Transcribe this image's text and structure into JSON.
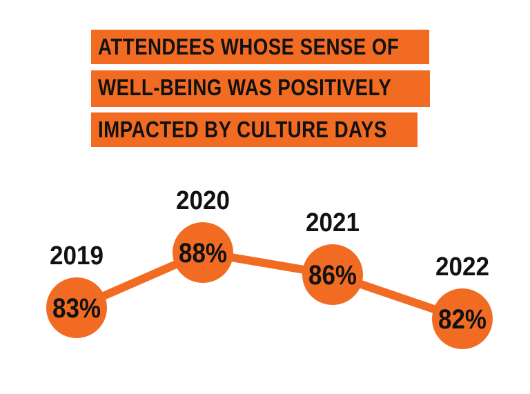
{
  "title_lines": [
    "ATTENDEES WHOSE SENSE OF",
    "WELL-BEING WAS POSITIVELY",
    "IMPACTED BY CULTURE DAYS"
  ],
  "colors": {
    "accent": "#f26b22",
    "text": "#111111",
    "background": "#ffffff"
  },
  "chart_data": {
    "type": "line",
    "title": "ATTENDEES WHOSE SENSE OF WELL-BEING WAS POSITIVELY IMPACTED BY CULTURE DAYS",
    "categories": [
      "2019",
      "2020",
      "2021",
      "2022"
    ],
    "values": [
      83,
      88,
      86,
      82
    ],
    "value_labels": [
      "83%",
      "88%",
      "86%",
      "82%"
    ],
    "unit": "%",
    "grid": false,
    "legend": "none"
  }
}
